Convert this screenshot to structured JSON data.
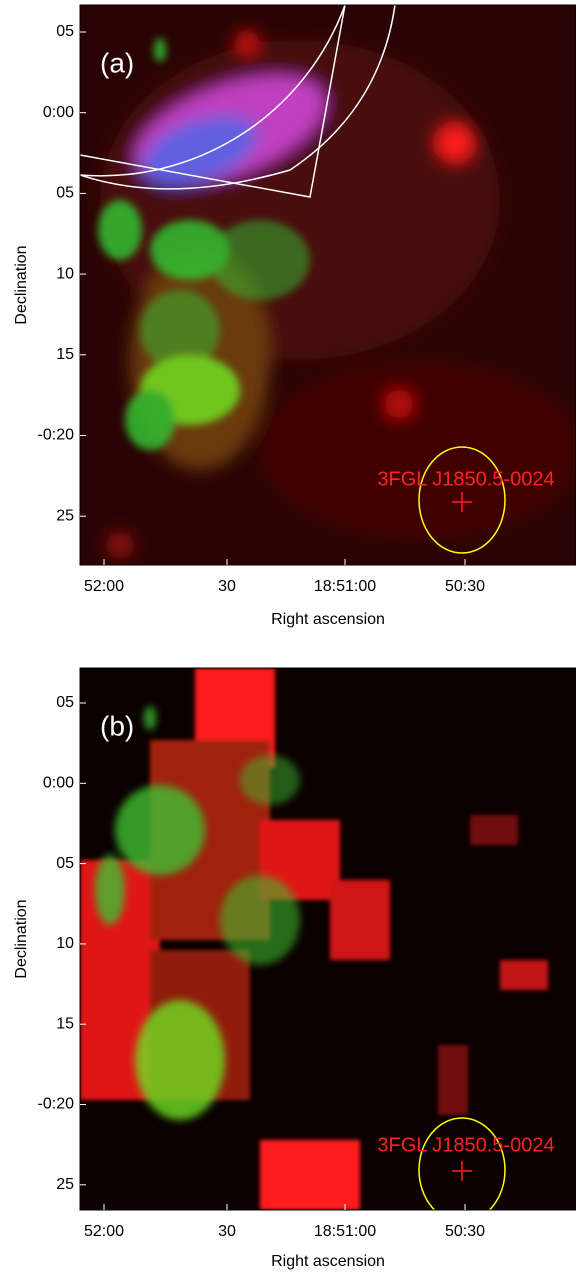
{
  "panels": [
    {
      "label": "(a)",
      "source": "3FGL J1850.5-0024",
      "x_tick_labels": [
        "52:00",
        "30",
        "18:51:00",
        "50:30"
      ],
      "y_tick_labels": [
        "05",
        "0:00",
        "05",
        "10",
        "15",
        "-0:20",
        "25"
      ],
      "x_axis_label": "Right ascension",
      "y_axis_label": "Declination"
    },
    {
      "label": "(b)",
      "source": "3FGL J1850.5-0024",
      "x_tick_labels": [
        "52:00",
        "30",
        "18:51:00",
        "50:30"
      ],
      "y_tick_labels": [
        "05",
        "0:00",
        "05",
        "10",
        "15",
        "-0:20",
        "25"
      ],
      "x_axis_label": "Right ascension",
      "y_axis_label": "Declination"
    }
  ]
}
